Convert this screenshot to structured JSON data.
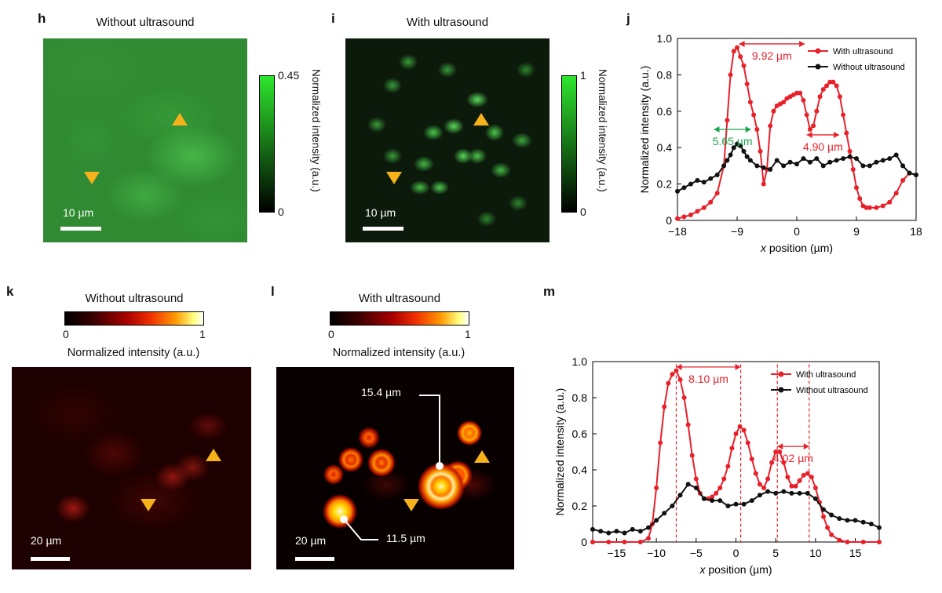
{
  "panels": {
    "h": {
      "label": "h",
      "title": "Without ultrasound",
      "scale": "10 µm",
      "cbar_max": "0.45",
      "cbar_min": "0",
      "cbar_label": "Normalized intensity (a.u.)"
    },
    "i": {
      "label": "i",
      "title": "With ultrasound",
      "scale": "10 µm",
      "cbar_max": "1",
      "cbar_min": "0",
      "cbar_label": "Normalized intensity (a.u.)"
    },
    "j": {
      "label": "j"
    },
    "k": {
      "label": "k",
      "title": "Without ultrasound",
      "cbar_min": "0",
      "cbar_max": "1",
      "cbar_label": "Normalized intensity (a.u.)",
      "scale": "20 µm"
    },
    "l": {
      "label": "l",
      "title": "With ultrasound",
      "cbar_min": "0",
      "cbar_max": "1",
      "cbar_label": "Normalized intensity (a.u.)",
      "scale": "20 µm",
      "ann1": "15.4 µm",
      "ann2": "11.5 µm"
    },
    "m": {
      "label": "m"
    }
  },
  "chart_data": [
    {
      "id": "j",
      "type": "line",
      "xlabel_pre": "x",
      "xlabel_post": " position (µm)",
      "ylabel": "Normalized intensity (a.u.)",
      "xlim": [
        -18,
        18
      ],
      "ylim": [
        0,
        1.0
      ],
      "xticks": [
        -18,
        -9,
        0,
        9,
        18
      ],
      "xtick_labels": [
        "−18",
        "−9",
        "0",
        "9",
        "18"
      ],
      "yticks": [
        0,
        0.2,
        0.4,
        0.6,
        0.8,
        1.0
      ],
      "ytick_labels": [
        "0",
        "0.2",
        "0.4",
        "0.6",
        "0.8",
        "1.0"
      ],
      "legend": [
        "With ultrasound",
        "Without ultrasound"
      ],
      "series": [
        {
          "name": "With ultrasound",
          "color": "#e8202a",
          "x": [
            -18,
            -17,
            -16,
            -15,
            -14,
            -13,
            -12,
            -11,
            -10.5,
            -10,
            -9.5,
            -9,
            -8.5,
            -8,
            -7.5,
            -7,
            -6.5,
            -6,
            -5.5,
            -5,
            -4.5,
            -4,
            -3.5,
            -3,
            -2.5,
            -2,
            -1.5,
            -1,
            -0.5,
            0,
            0.5,
            1,
            1.5,
            2,
            2.5,
            3,
            3.5,
            4,
            4.5,
            5,
            5.5,
            6,
            6.5,
            7,
            7.5,
            8,
            8.5,
            9,
            9.5,
            10,
            10.5,
            11,
            12,
            13,
            14,
            15,
            16,
            17,
            18
          ],
          "y": [
            0.01,
            0.02,
            0.03,
            0.05,
            0.07,
            0.1,
            0.15,
            0.3,
            0.55,
            0.8,
            0.93,
            0.95,
            0.9,
            0.85,
            0.75,
            0.65,
            0.58,
            0.5,
            0.38,
            0.2,
            0.28,
            0.52,
            0.6,
            0.63,
            0.64,
            0.65,
            0.67,
            0.68,
            0.69,
            0.7,
            0.7,
            0.66,
            0.58,
            0.5,
            0.52,
            0.6,
            0.68,
            0.72,
            0.74,
            0.76,
            0.76,
            0.74,
            0.68,
            0.58,
            0.48,
            0.38,
            0.28,
            0.18,
            0.12,
            0.08,
            0.07,
            0.07,
            0.07,
            0.08,
            0.1,
            0.15,
            0.22,
            0.26,
            0.25
          ]
        },
        {
          "name": "Without ultrasound",
          "color": "#111111",
          "x": [
            -18,
            -17,
            -16,
            -15,
            -14,
            -13,
            -12,
            -11,
            -10.5,
            -10,
            -9.5,
            -9,
            -8.5,
            -8,
            -7.5,
            -7,
            -6,
            -5,
            -4,
            -3,
            -2,
            -1,
            0,
            1,
            2,
            3,
            4,
            5,
            6,
            7,
            8,
            9,
            10,
            11,
            12,
            13,
            14,
            15,
            16,
            17,
            18
          ],
          "y": [
            0.16,
            0.18,
            0.2,
            0.22,
            0.21,
            0.23,
            0.25,
            0.3,
            0.33,
            0.36,
            0.4,
            0.42,
            0.41,
            0.38,
            0.35,
            0.33,
            0.3,
            0.29,
            0.28,
            0.33,
            0.3,
            0.32,
            0.31,
            0.34,
            0.32,
            0.34,
            0.3,
            0.32,
            0.33,
            0.34,
            0.35,
            0.34,
            0.3,
            0.3,
            0.32,
            0.33,
            0.34,
            0.36,
            0.3,
            0.26,
            0.25
          ]
        }
      ],
      "annotations": [
        {
          "text": "9.92 µm",
          "x1": -8.7,
          "x2": 1.2,
          "y": 0.97,
          "color": "#e8202a"
        },
        {
          "text": "5.65 µm",
          "x1": -12.5,
          "x2": -6.9,
          "y": 0.5,
          "color": "#1aa24a"
        },
        {
          "text": "4.90 µm",
          "x1": 1.5,
          "x2": 6.4,
          "y": 0.47,
          "color": "#e8202a"
        }
      ]
    },
    {
      "id": "m",
      "type": "line",
      "xlabel_pre": "x",
      "xlabel_post": " position (µm)",
      "ylabel": "Normalized intensity (a.u.)",
      "xlim": [
        -18,
        18
      ],
      "ylim": [
        0,
        1.0
      ],
      "xticks": [
        -15,
        -10,
        -5,
        0,
        5,
        10,
        15
      ],
      "xtick_labels": [
        "−15",
        "−10",
        "−5",
        "0",
        "5",
        "10",
        "15"
      ],
      "yticks": [
        0,
        0.2,
        0.4,
        0.6,
        0.8,
        1.0
      ],
      "ytick_labels": [
        "0",
        "0.2",
        "0.4",
        "0.6",
        "0.8",
        "1.0"
      ],
      "legend": [
        "With ultrasound",
        "Without ultrasound"
      ],
      "series": [
        {
          "name": "With ultrasound",
          "color": "#e8202a",
          "x": [
            -18,
            -16,
            -14,
            -12,
            -11,
            -10.5,
            -10,
            -9.5,
            -9,
            -8.5,
            -8,
            -7.5,
            -7,
            -6.5,
            -6,
            -5.5,
            -5,
            -4.5,
            -4,
            -3.5,
            -3,
            -2.5,
            -2,
            -1.5,
            -1,
            -0.5,
            0,
            0.5,
            1,
            1.5,
            2,
            2.5,
            3,
            3.5,
            4,
            4.5,
            5,
            5.5,
            6,
            6.5,
            7,
            7.5,
            8,
            8.5,
            9,
            9.5,
            10,
            10.5,
            11,
            11.5,
            12,
            13,
            14,
            16,
            18
          ],
          "y": [
            0,
            0,
            0,
            0,
            0.02,
            0.1,
            0.3,
            0.55,
            0.75,
            0.88,
            0.93,
            0.95,
            0.9,
            0.8,
            0.65,
            0.48,
            0.35,
            0.27,
            0.24,
            0.24,
            0.25,
            0.27,
            0.3,
            0.35,
            0.42,
            0.52,
            0.6,
            0.64,
            0.62,
            0.55,
            0.46,
            0.38,
            0.32,
            0.3,
            0.35,
            0.44,
            0.5,
            0.5,
            0.44,
            0.36,
            0.31,
            0.31,
            0.34,
            0.37,
            0.38,
            0.36,
            0.3,
            0.22,
            0.14,
            0.08,
            0.04,
            0.01,
            0,
            0,
            0
          ]
        },
        {
          "name": "Without ultrasound",
          "color": "#111111",
          "x": [
            -18,
            -17,
            -16,
            -15,
            -14,
            -13,
            -12,
            -11,
            -10,
            -9,
            -8,
            -7,
            -6,
            -5,
            -4,
            -3,
            -2,
            -1,
            0,
            1,
            2,
            3,
            4,
            5,
            6,
            7,
            8,
            9,
            10,
            11,
            12,
            13,
            14,
            15,
            16,
            17,
            18
          ],
          "y": [
            0.07,
            0.06,
            0.05,
            0.06,
            0.05,
            0.07,
            0.06,
            0.08,
            0.12,
            0.16,
            0.2,
            0.26,
            0.32,
            0.3,
            0.24,
            0.23,
            0.23,
            0.2,
            0.21,
            0.21,
            0.23,
            0.26,
            0.28,
            0.27,
            0.28,
            0.27,
            0.27,
            0.27,
            0.24,
            0.18,
            0.15,
            0.13,
            0.12,
            0.12,
            0.11,
            0.1,
            0.08
          ]
        }
      ],
      "annotations": [
        {
          "text": "8.10 µm",
          "x1": -7.5,
          "x2": 0.6,
          "y": 0.97,
          "color": "#e8202a"
        },
        {
          "text": "4.02 µm",
          "x1": 5.2,
          "x2": 9.2,
          "y": 0.53,
          "color": "#e8202a"
        }
      ],
      "vlines": [
        -7.5,
        0.6,
        5.2,
        9.2
      ]
    }
  ]
}
